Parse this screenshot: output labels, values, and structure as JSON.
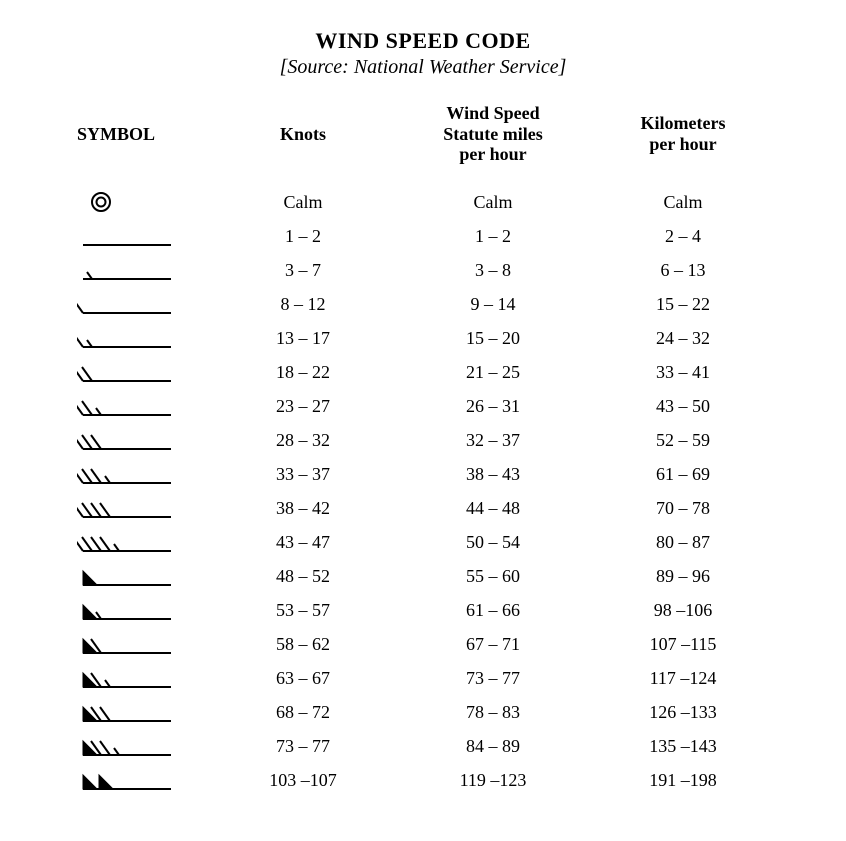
{
  "title": "WIND SPEED CODE",
  "subtitle": "[Source: National Weather Service]",
  "headers": {
    "symbol": "SYMBOL",
    "knots": "Knots",
    "mph": "Wind Speed\nStatute miles\nper hour",
    "kph": "Kilometers\nper hour"
  },
  "style": {
    "background": "#ffffff",
    "text_color": "#000000",
    "font_family": "Times New Roman, serif",
    "title_fontsize": 22,
    "subtitle_fontsize": 20,
    "header_fontsize": 18,
    "cell_fontsize": 18,
    "barb_stroke": "#000000",
    "barb_stroke_width": 2,
    "barb_svg_width": 100,
    "barb_svg_height": 26
  },
  "rows": [
    {
      "symbol": {
        "type": "calm"
      },
      "knots": "Calm",
      "mph": "Calm",
      "kph": "Calm"
    },
    {
      "symbol": {
        "type": "barb",
        "flags": 0,
        "full": 0,
        "half": 0
      },
      "knots": "1 –  2",
      "mph": "1 –  2",
      "kph": "2 –  4"
    },
    {
      "symbol": {
        "type": "barb",
        "flags": 0,
        "full": 0,
        "half": 1
      },
      "knots": "3 –  7",
      "mph": "3 –  8",
      "kph": "6 – 13"
    },
    {
      "symbol": {
        "type": "barb",
        "flags": 0,
        "full": 1,
        "half": 0
      },
      "knots": "8 – 12",
      "mph": "9 – 14",
      "kph": "15 – 22"
    },
    {
      "symbol": {
        "type": "barb",
        "flags": 0,
        "full": 1,
        "half": 1
      },
      "knots": "13 – 17",
      "mph": "15 – 20",
      "kph": "24 – 32"
    },
    {
      "symbol": {
        "type": "barb",
        "flags": 0,
        "full": 2,
        "half": 0
      },
      "knots": "18 – 22",
      "mph": "21 – 25",
      "kph": "33 – 41"
    },
    {
      "symbol": {
        "type": "barb",
        "flags": 0,
        "full": 2,
        "half": 1
      },
      "knots": "23 – 27",
      "mph": "26 – 31",
      "kph": "43 – 50"
    },
    {
      "symbol": {
        "type": "barb",
        "flags": 0,
        "full": 3,
        "half": 0
      },
      "knots": "28 – 32",
      "mph": "32 – 37",
      "kph": "52 – 59"
    },
    {
      "symbol": {
        "type": "barb",
        "flags": 0,
        "full": 3,
        "half": 1
      },
      "knots": "33 – 37",
      "mph": "38 – 43",
      "kph": "61 – 69"
    },
    {
      "symbol": {
        "type": "barb",
        "flags": 0,
        "full": 4,
        "half": 0
      },
      "knots": "38 – 42",
      "mph": "44 – 48",
      "kph": "70 – 78"
    },
    {
      "symbol": {
        "type": "barb",
        "flags": 0,
        "full": 4,
        "half": 1
      },
      "knots": "43 – 47",
      "mph": "50 – 54",
      "kph": "80 – 87"
    },
    {
      "symbol": {
        "type": "barb",
        "flags": 1,
        "full": 0,
        "half": 0
      },
      "knots": "48 – 52",
      "mph": "55 – 60",
      "kph": "89 – 96"
    },
    {
      "symbol": {
        "type": "barb",
        "flags": 1,
        "full": 0,
        "half": 1
      },
      "knots": "53 – 57",
      "mph": "61 – 66",
      "kph": "98 –106"
    },
    {
      "symbol": {
        "type": "barb",
        "flags": 1,
        "full": 1,
        "half": 0
      },
      "knots": "58 – 62",
      "mph": "67 – 71",
      "kph": "107 –115"
    },
    {
      "symbol": {
        "type": "barb",
        "flags": 1,
        "full": 1,
        "half": 1
      },
      "knots": "63 – 67",
      "mph": "73 – 77",
      "kph": "117 –124"
    },
    {
      "symbol": {
        "type": "barb",
        "flags": 1,
        "full": 2,
        "half": 0
      },
      "knots": "68 – 72",
      "mph": "78 – 83",
      "kph": "126 –133"
    },
    {
      "symbol": {
        "type": "barb",
        "flags": 1,
        "full": 2,
        "half": 1
      },
      "knots": "73 – 77",
      "mph": "84 – 89",
      "kph": "135 –143"
    },
    {
      "symbol": {
        "type": "barb",
        "flags": 2,
        "full": 0,
        "half": 0
      },
      "knots": "103 –107",
      "mph": "119 –123",
      "kph": "191 –198"
    }
  ]
}
